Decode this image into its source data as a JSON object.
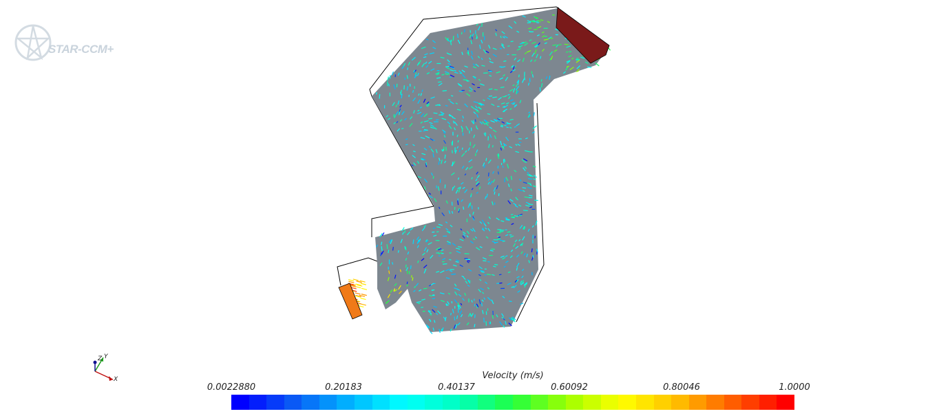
{
  "logo": {
    "text": "STAR-CCM+"
  },
  "axes_triad": {
    "labels": [
      "Z",
      "Y",
      "X"
    ]
  },
  "legend": {
    "title": "Velocity (m/s)",
    "ticks": [
      "0.0022880",
      "0.20183",
      "0.40137",
      "0.60092",
      "0.80046",
      "1.0000"
    ],
    "min": 0.002288,
    "max": 1.0,
    "colormap_stops": [
      "#0000ff",
      "#0a5cf5",
      "#00b4ff",
      "#00ffff",
      "#00ffc0",
      "#20ff40",
      "#a0ff00",
      "#ffff00",
      "#ffc000",
      "#ff6000",
      "#ff0000"
    ]
  },
  "colors": {
    "wall": "#7d8790",
    "inlet": "#7a1a1a",
    "outlet": "#f07a18",
    "outline": "#000000"
  }
}
